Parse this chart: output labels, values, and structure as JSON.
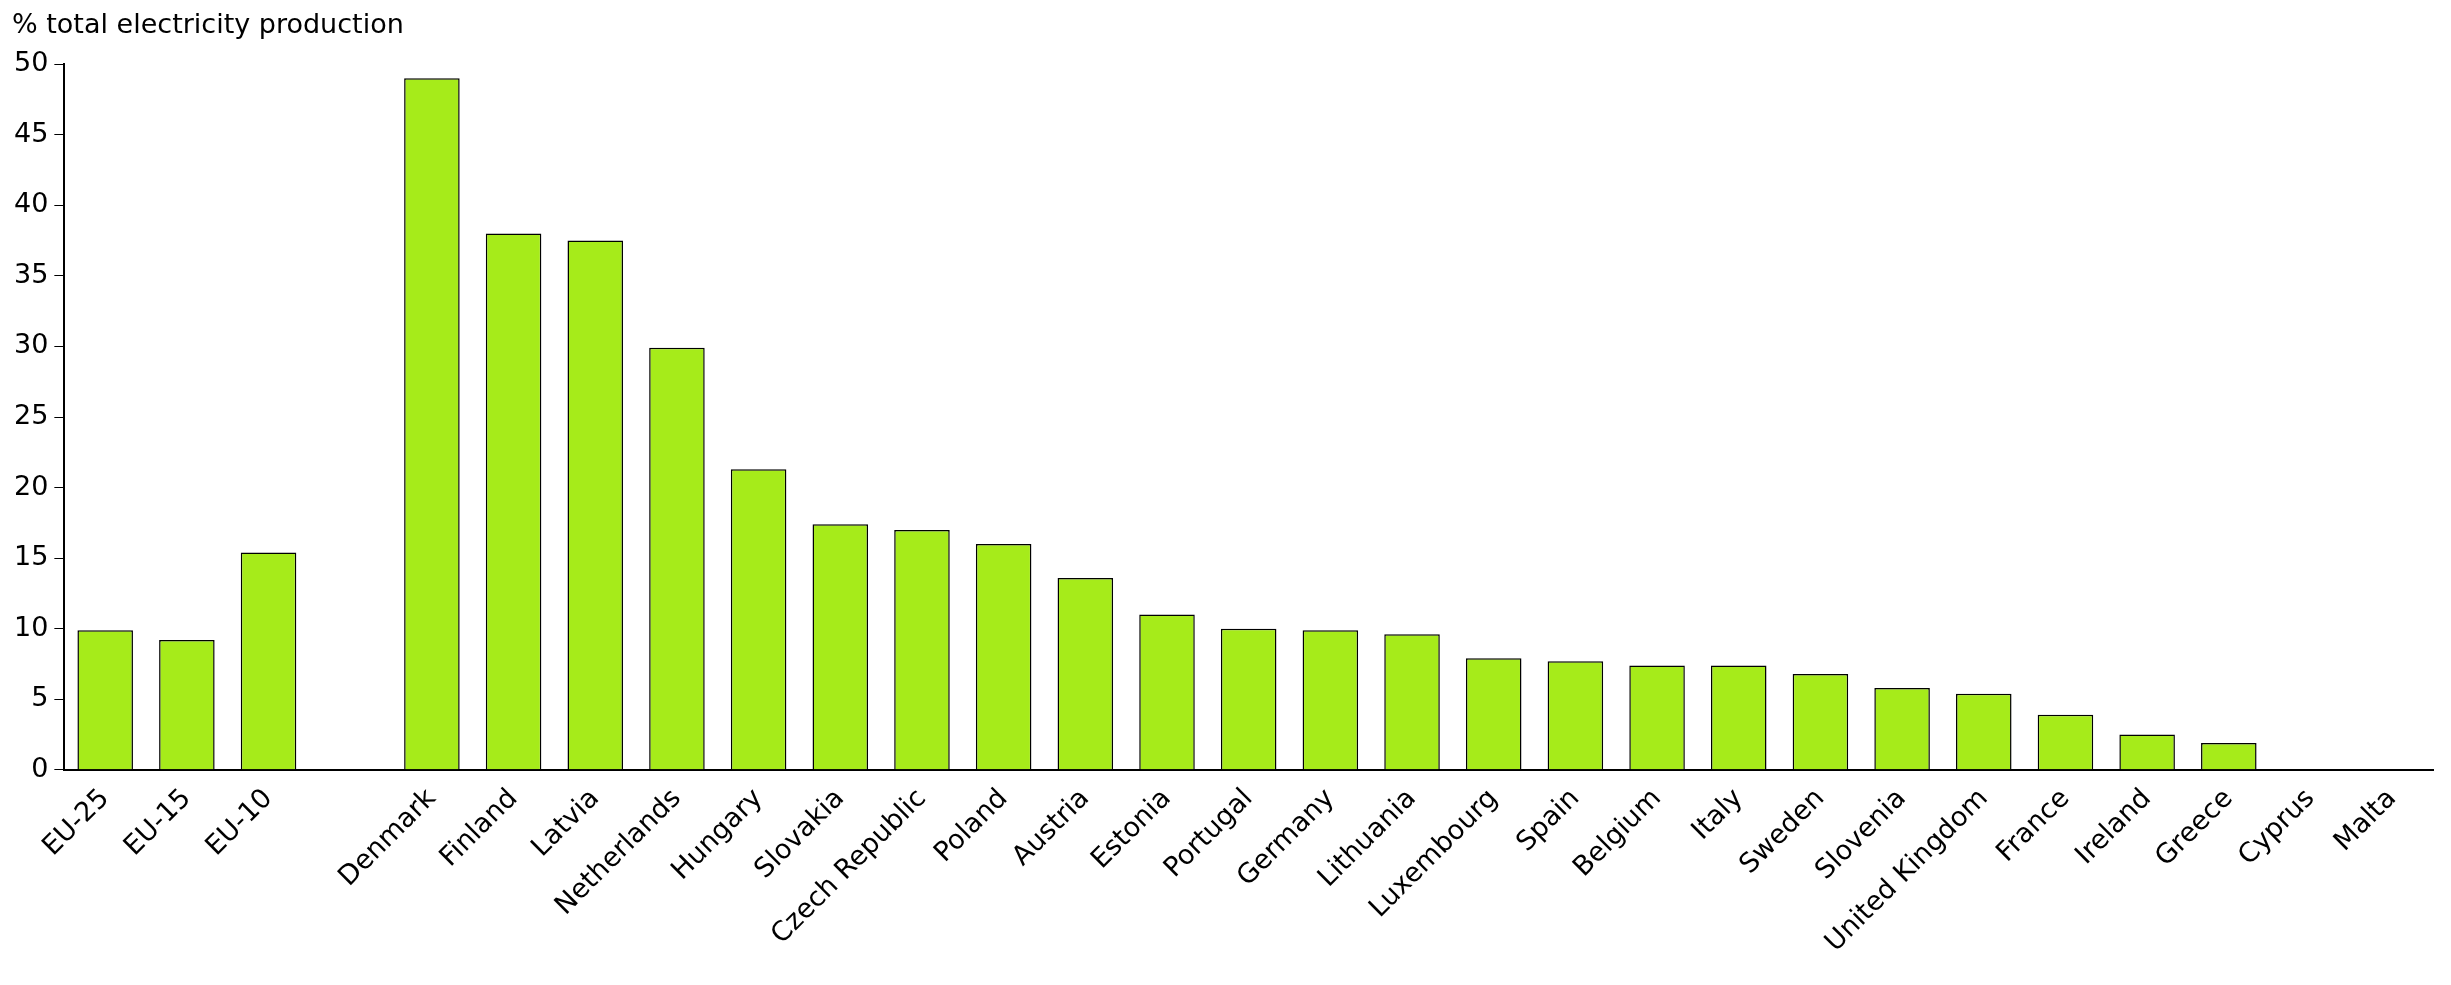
{
  "chart_data": {
    "type": "bar",
    "ylabel": "% total electricity production",
    "categories": [
      "EU-25",
      "EU-15",
      "EU-10",
      null,
      "Denmark",
      "Finland",
      "Latvia",
      "Netherlands",
      "Hungary",
      "Slovakia",
      "Czech Republic",
      "Poland",
      "Austria",
      "Estonia",
      "Portugal",
      "Germany",
      "Lithuania",
      "Luxembourg",
      "Spain",
      "Belgium",
      "Italy",
      "Sweden",
      "Slovenia",
      "United Kingdom",
      "France",
      "Ireland",
      "Greece",
      "Cyprus",
      "Malta"
    ],
    "values": [
      9.9,
      9.2,
      15.4,
      null,
      49.0,
      38.0,
      37.5,
      29.9,
      21.3,
      17.4,
      17.0,
      16.0,
      13.6,
      11.0,
      10.0,
      9.9,
      9.6,
      7.9,
      7.7,
      7.4,
      7.4,
      6.8,
      5.8,
      5.4,
      3.9,
      2.5,
      1.9,
      0,
      0
    ],
    "color": "#a6eb1a",
    "ylim": [
      0,
      50
    ],
    "yticks": [
      0,
      5,
      10,
      15,
      20,
      25,
      30,
      35,
      40,
      45,
      50
    ],
    "grid": false,
    "legend": false
  }
}
